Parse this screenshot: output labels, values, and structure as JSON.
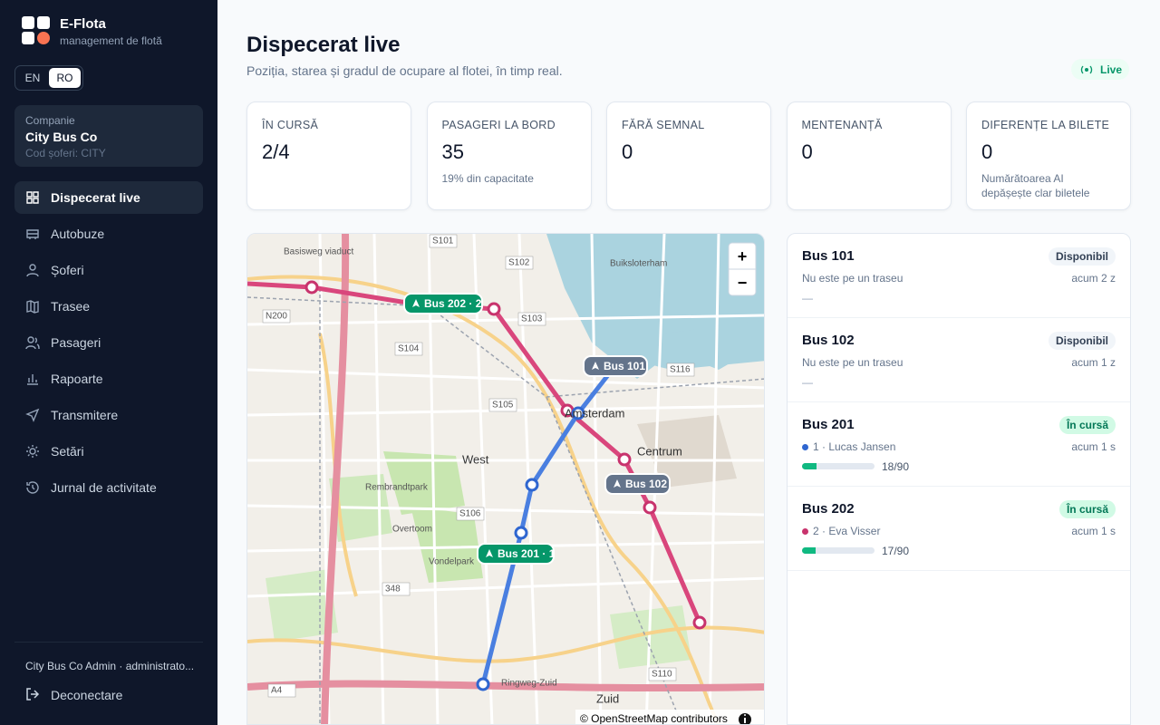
{
  "brand": {
    "name": "E-Flota",
    "tagline": "management de flotă"
  },
  "language": [
    "EN",
    "RO"
  ],
  "company": {
    "label": "Companie",
    "name": "City Bus Co",
    "code": "Cod șoferi: CITY"
  },
  "nav": [
    "Dispecerat live",
    "Autobuze",
    "Șoferi",
    "Trasee",
    "Pasageri",
    "Rapoarte",
    "Transmitere",
    "Setări",
    "Jurnal de activitate"
  ],
  "footer": {
    "user": "City Bus Co Admin · administrato...",
    "logout": "Deconectare"
  },
  "header": {
    "title": "Dispecerat live",
    "subtitle": "Poziția, starea și gradul de ocupare al flotei, în timp real.",
    "status": "Live"
  },
  "stats": [
    {
      "label": "ÎN CURSĂ",
      "value": "2/4"
    },
    {
      "label": "PASAGERI LA BORD",
      "value": "35",
      "note": "19% din capacitate"
    },
    {
      "label": "FĂRĂ SEMNAL",
      "value": "0"
    },
    {
      "label": "MENTENANȚĂ",
      "value": "0"
    },
    {
      "label": "DIFERENȚE LA BILETE",
      "value": "0",
      "note": "Numărătoarea AI depășește clar biletele"
    }
  ],
  "map": {
    "labels": [
      "Basisweg viaduct",
      "S101",
      "S102",
      "S103",
      "S104",
      "S105",
      "S106",
      "S116",
      "S110",
      "N200",
      "Amsterdam",
      "West",
      "Centrum",
      "Vondelpark",
      "Rembrandtpark",
      "Overtoom",
      "Zuid",
      "Ringweg-Zuid",
      "A4",
      "Buiksloterham",
      "348"
    ],
    "bus_labels": [
      "Bus 202 · 2",
      "Bus 101",
      "Bus 102",
      "Bus 201 · 1"
    ],
    "zoom": [
      "+",
      "−"
    ],
    "attribution": "© OpenStreetMap contributors"
  },
  "buses": [
    {
      "name": "Bus 101",
      "status": "Disponibil",
      "line": "Nu este pe un traseu",
      "time": "acum 2 z",
      "extra": "—"
    },
    {
      "name": "Bus 102",
      "status": "Disponibil",
      "line": "Nu este pe un traseu",
      "time": "acum 1 z",
      "extra": "—"
    },
    {
      "name": "Bus 201",
      "status": "În cursă",
      "line": "1 · Lucas Jansen",
      "time": "acum 1 s",
      "load": "18/90"
    },
    {
      "name": "Bus 202",
      "status": "În cursă",
      "line": "2 · Eva Visser",
      "time": "acum 1 s",
      "load": "17/90"
    }
  ]
}
